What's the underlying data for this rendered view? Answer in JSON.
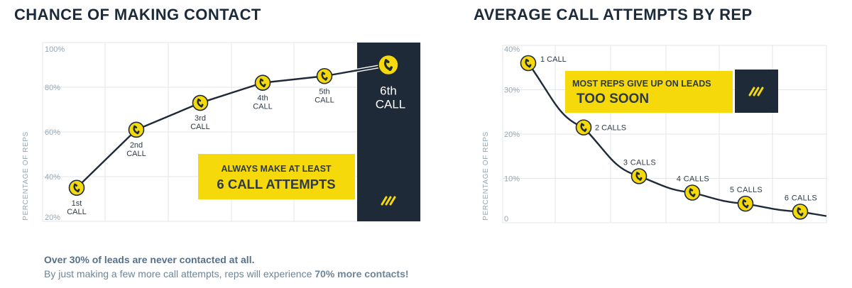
{
  "colors": {
    "navy": "#1e2a38",
    "yellow": "#f5d90a",
    "grid": "#e3e6e9",
    "axis_text": "#95a6b3",
    "label_text": "#2e3a48",
    "footer_text": "#6d8597"
  },
  "icon": "phone-icon",
  "chart_data": [
    {
      "type": "line",
      "title": "CHANCE OF MAKING CONTACT",
      "ylabel": "PERCENTAGE OF REPS",
      "ylim": [
        20,
        100
      ],
      "yticks": [
        "20%",
        "40%",
        "60%",
        "80%",
        "100%"
      ],
      "grid": true,
      "points": [
        {
          "x": 1,
          "y": 35,
          "label_top": "1st",
          "label_bottom": "CALL"
        },
        {
          "x": 2,
          "y": 61,
          "label_top": "2nd",
          "label_bottom": "CALL"
        },
        {
          "x": 3,
          "y": 73,
          "label_top": "3rd",
          "label_bottom": "CALL"
        },
        {
          "x": 4,
          "y": 82,
          "label_top": "4th",
          "label_bottom": "CALL"
        },
        {
          "x": 5,
          "y": 85,
          "label_top": "5th",
          "label_bottom": "CALL"
        },
        {
          "x": 6,
          "y": 90,
          "label_top": "6th",
          "label_bottom": "CALL"
        }
      ],
      "callout": {
        "line1": "ALWAYS MAKE AT LEAST",
        "line2": "6 CALL ATTEMPTS"
      }
    },
    {
      "type": "line",
      "title": "AVERAGE CALL ATTEMPTS BY REP",
      "ylabel": "PERCENTAGE OF REPS",
      "ylim": [
        0,
        40
      ],
      "yticks": [
        "0",
        "10%",
        "20%",
        "30%",
        "40%"
      ],
      "grid": true,
      "points": [
        {
          "x": 1,
          "y": 36,
          "label": "1 CALL"
        },
        {
          "x": 2,
          "y": 21.5,
          "label": "2 CALLS"
        },
        {
          "x": 3,
          "y": 10.5,
          "label": "3 CALLS"
        },
        {
          "x": 4,
          "y": 6.8,
          "label": "4 CALLS"
        },
        {
          "x": 5,
          "y": 4.3,
          "label": "5 CALLS"
        },
        {
          "x": 6,
          "y": 2.5,
          "label": "6 CALLS"
        }
      ],
      "callout": {
        "line1": "MOST REPS GIVE UP ON LEADS",
        "line2": "TOO SOON"
      }
    }
  ],
  "footer": {
    "line1": "Over 30% of leads are never contacted at all.",
    "line2_prefix": "By just making a few more call attempts, reps will experience ",
    "line2_bold": "70% more contacts!"
  }
}
